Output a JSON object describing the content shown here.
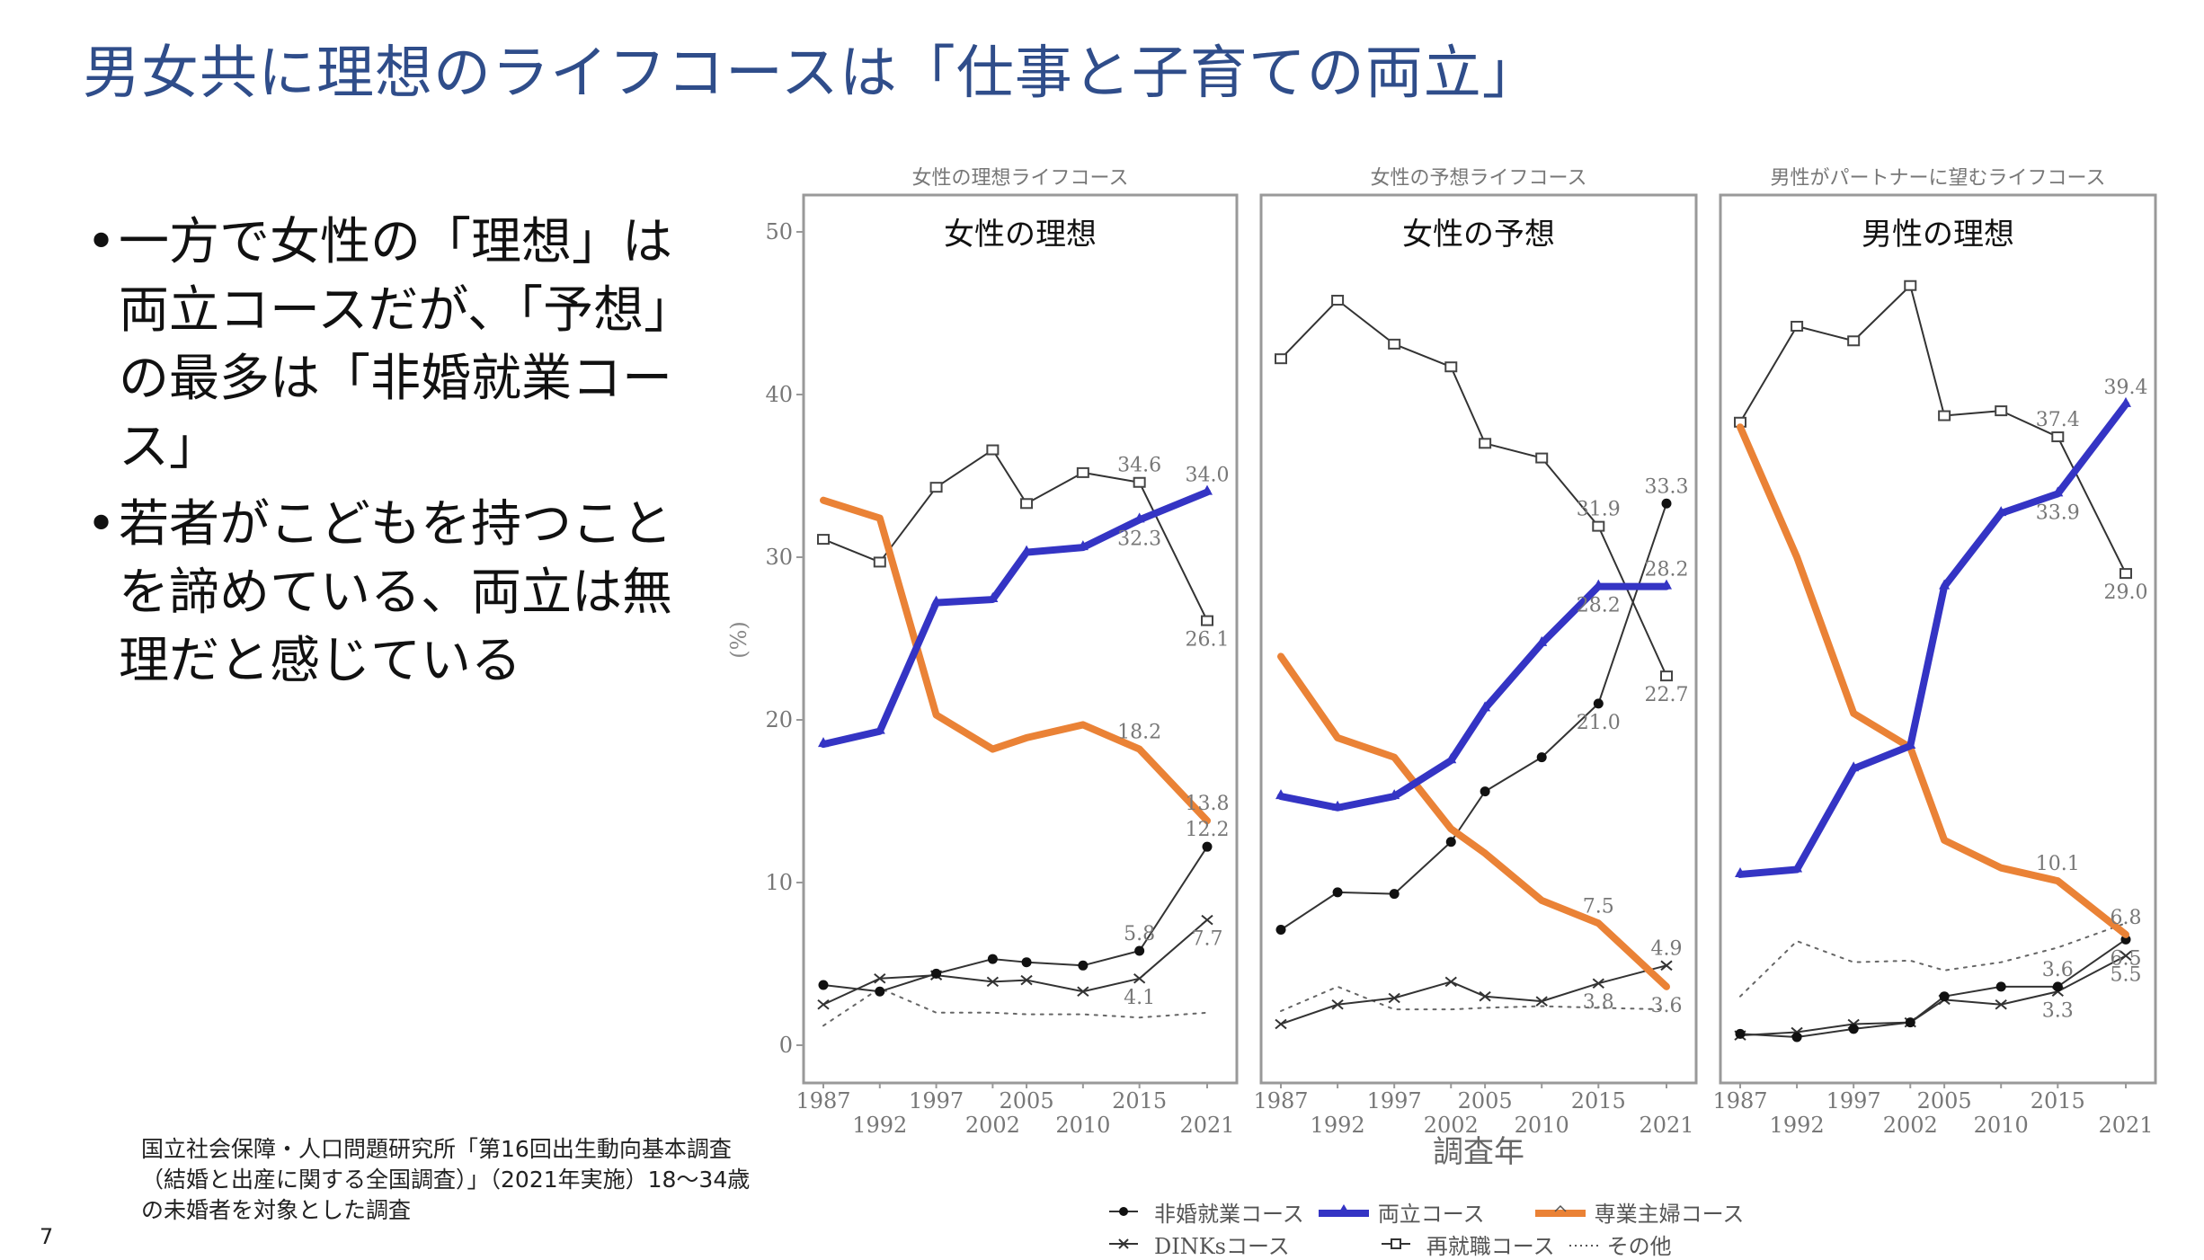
{
  "title": "男女共に理想のライフコースは「仕事と子育ての両立」",
  "bullets": [
    "一方で女性の「理想」は両立コースだが、「予想」の最多は「非婚就業コース」",
    "若者がこどもを持つことを諦めている、両立は無理だと感じている"
  ],
  "bullet_marker": "•",
  "footnote": "国立社会保障・人口問題研究所「第16回出生動向基本調査（結婚と出産に関する全国調査）」（2021年実施）18～34歳の未婚者を対象とした調査",
  "page_number": "7",
  "colors": {
    "ryoritsu": "#3434c4",
    "sengyo": "#ea8236",
    "black": "#333333",
    "title": "#2f4d8a"
  },
  "chart_data": [
    {
      "type": "line",
      "subtitle": "女性の理想ライフコース",
      "title": "女性の理想",
      "ylabel": "(%)",
      "xlabel": "",
      "ylim": [
        0,
        50
      ],
      "yticks": [
        0,
        10,
        20,
        30,
        40,
        50
      ],
      "x": [
        1987,
        1992,
        1997,
        2002,
        2005,
        2010,
        2015,
        2021
      ],
      "series": [
        {
          "name": "非婚就業コース",
          "values": [
            3.7,
            3.3,
            4.4,
            5.3,
            5.1,
            4.9,
            5.8,
            12.2
          ]
        },
        {
          "name": "両立コース",
          "values": [
            18.5,
            19.3,
            27.2,
            27.4,
            30.3,
            30.6,
            32.3,
            34.0
          ]
        },
        {
          "name": "専業主婦コース",
          "values": [
            33.5,
            32.4,
            20.3,
            18.2,
            18.9,
            19.7,
            18.2,
            13.8
          ]
        },
        {
          "name": "DINKsコース",
          "values": [
            2.5,
            4.1,
            4.3,
            3.9,
            4.0,
            3.3,
            4.1,
            7.7
          ]
        },
        {
          "name": "再就職コース",
          "values": [
            31.1,
            29.7,
            34.3,
            36.6,
            33.3,
            35.2,
            34.6,
            26.1
          ]
        },
        {
          "name": "その他",
          "values": [
            1.2,
            3.5,
            2.0,
            2.0,
            1.9,
            1.9,
            1.7,
            2.0
          ]
        }
      ],
      "data_labels": [
        {
          "series": 4,
          "index": 6,
          "text": "34.6",
          "position": "above"
        },
        {
          "series": 1,
          "index": 7,
          "text": "34.0",
          "position": "above"
        },
        {
          "series": 1,
          "index": 6,
          "text": "32.3",
          "position": "below"
        },
        {
          "series": 4,
          "index": 7,
          "text": "26.1",
          "position": "below"
        },
        {
          "series": 2,
          "index": 6,
          "text": "18.2",
          "position": "above"
        },
        {
          "series": 2,
          "index": 7,
          "text": "13.8",
          "position": "above"
        },
        {
          "series": 0,
          "index": 7,
          "text": "12.2",
          "position": "above"
        },
        {
          "series": 0,
          "index": 6,
          "text": "5.8",
          "position": "above"
        },
        {
          "series": 3,
          "index": 7,
          "text": "7.7",
          "position": "below"
        },
        {
          "series": 3,
          "index": 6,
          "text": "4.1",
          "position": "below"
        }
      ]
    },
    {
      "type": "line",
      "subtitle": "女性の予想ライフコース",
      "title": "女性の予想",
      "xlabel": "調査年",
      "ylim": [
        0,
        50
      ],
      "x": [
        1987,
        1992,
        1997,
        2002,
        2005,
        2010,
        2015,
        2021
      ],
      "series": [
        {
          "name": "非婚就業コース",
          "values": [
            7.1,
            9.4,
            9.3,
            12.5,
            15.6,
            17.7,
            21.0,
            33.3
          ]
        },
        {
          "name": "両立コース",
          "values": [
            15.3,
            14.6,
            15.3,
            17.5,
            20.7,
            24.7,
            28.2,
            28.2
          ]
        },
        {
          "name": "専業主婦コース",
          "values": [
            23.9,
            18.9,
            17.7,
            13.3,
            11.8,
            8.9,
            7.5,
            3.6
          ]
        },
        {
          "name": "DINKsコース",
          "values": [
            1.3,
            2.5,
            2.9,
            3.9,
            3.0,
            2.7,
            3.8,
            4.9
          ]
        },
        {
          "name": "再就職コース",
          "values": [
            42.2,
            45.8,
            43.1,
            41.7,
            37.0,
            36.1,
            31.9,
            22.7
          ]
        },
        {
          "name": "その他",
          "values": [
            2.1,
            3.6,
            2.2,
            2.2,
            2.3,
            2.4,
            2.3,
            2.2
          ]
        }
      ],
      "data_labels": [
        {
          "series": 4,
          "index": 6,
          "text": "31.9",
          "position": "above"
        },
        {
          "series": 0,
          "index": 7,
          "text": "33.3",
          "position": "above"
        },
        {
          "series": 1,
          "index": 7,
          "text": "28.2",
          "position": "above"
        },
        {
          "series": 1,
          "index": 6,
          "text": "28.2",
          "position": "below"
        },
        {
          "series": 4,
          "index": 7,
          "text": "22.7",
          "position": "below"
        },
        {
          "series": 0,
          "index": 6,
          "text": "21.0",
          "position": "below"
        },
        {
          "series": 2,
          "index": 6,
          "text": "7.5",
          "position": "above"
        },
        {
          "series": 3,
          "index": 7,
          "text": "4.9",
          "position": "above"
        },
        {
          "series": 3,
          "index": 6,
          "text": "3.8",
          "position": "below"
        },
        {
          "series": 2,
          "index": 7,
          "text": "3.6",
          "position": "below"
        }
      ]
    },
    {
      "type": "line",
      "subtitle": "男性がパートナーに望むライフコース",
      "title": "男性の理想",
      "xlabel": "",
      "ylim": [
        0,
        50
      ],
      "x": [
        1987,
        1992,
        1997,
        2002,
        2005,
        2010,
        2015,
        2021
      ],
      "series": [
        {
          "name": "非婚就業コース",
          "values": [
            0.7,
            0.5,
            1.0,
            1.4,
            3.0,
            3.6,
            3.6,
            6.5
          ]
        },
        {
          "name": "両立コース",
          "values": [
            10.5,
            10.8,
            17.0,
            18.4,
            28.2,
            32.7,
            33.9,
            39.4
          ]
        },
        {
          "name": "専業主婦コース",
          "values": [
            38.0,
            30.0,
            20.4,
            18.3,
            12.6,
            10.9,
            10.1,
            6.8
          ]
        },
        {
          "name": "DINKsコース",
          "values": [
            0.6,
            0.8,
            1.3,
            1.4,
            2.8,
            2.5,
            3.3,
            5.5
          ]
        },
        {
          "name": "再就職コース",
          "values": [
            38.3,
            44.2,
            43.3,
            46.7,
            38.7,
            39.0,
            37.4,
            29.0
          ]
        },
        {
          "name": "その他",
          "values": [
            3.0,
            6.4,
            5.1,
            5.2,
            4.6,
            5.1,
            6.0,
            7.5
          ]
        }
      ],
      "data_labels": [
        {
          "series": 1,
          "index": 7,
          "text": "39.4",
          "position": "above"
        },
        {
          "series": 4,
          "index": 6,
          "text": "37.4",
          "position": "above"
        },
        {
          "series": 1,
          "index": 6,
          "text": "33.9",
          "position": "below"
        },
        {
          "series": 4,
          "index": 7,
          "text": "29.0",
          "position": "below"
        },
        {
          "series": 2,
          "index": 6,
          "text": "10.1",
          "position": "above"
        },
        {
          "series": 2,
          "index": 7,
          "text": "6.8",
          "position": "above"
        },
        {
          "series": 0,
          "index": 7,
          "text": "6.5",
          "position": "below"
        },
        {
          "series": 3,
          "index": 7,
          "text": "5.5",
          "position": "below"
        },
        {
          "series": 0,
          "index": 6,
          "text": "3.6",
          "position": "above"
        },
        {
          "series": 3,
          "index": 6,
          "text": "3.3",
          "position": "below"
        }
      ]
    }
  ],
  "legend": {
    "items": [
      {
        "label": "非婚就業コース",
        "marker": "dot"
      },
      {
        "label": "両立コース",
        "marker": "triangle"
      },
      {
        "label": "専業主婦コース",
        "marker": "circle"
      },
      {
        "label": "DINKsコース",
        "marker": "cross"
      },
      {
        "label": "再就職コース",
        "marker": "square"
      },
      {
        "label": "その他",
        "marker": "dotted"
      }
    ]
  }
}
